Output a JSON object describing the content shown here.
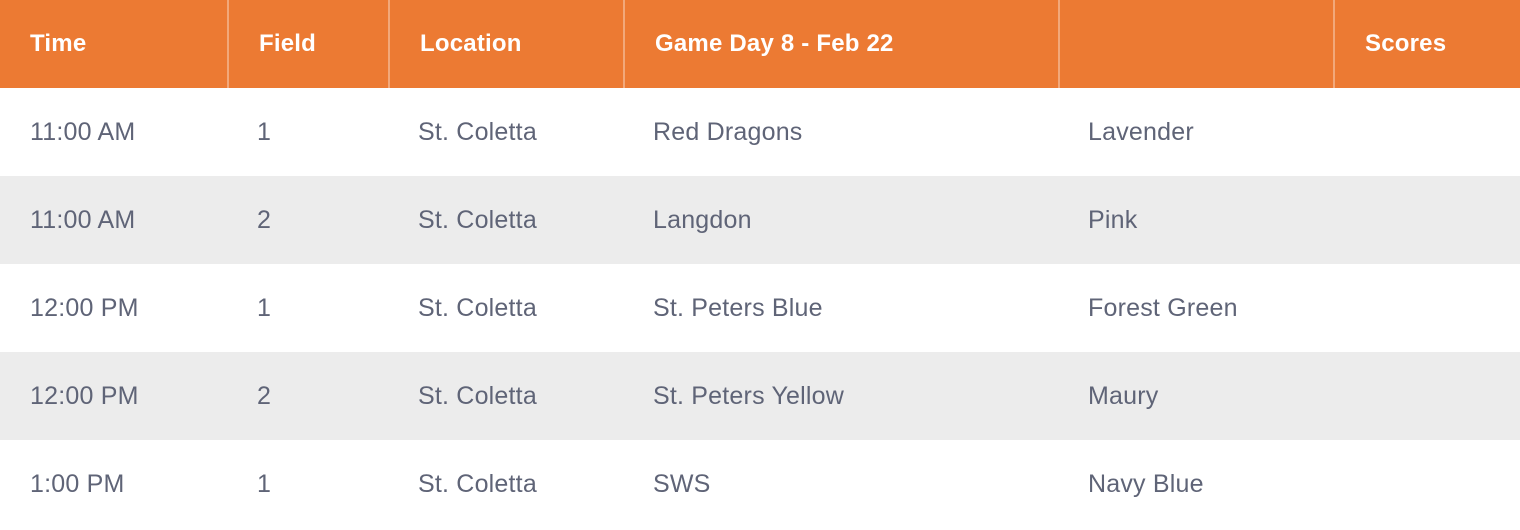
{
  "colors": {
    "header_bg": "#EC7A33",
    "header_text": "#FFFFFF",
    "header_divider": "rgba(255,255,255,0.35)",
    "body_text": "#5F6477",
    "row_bg": "#FFFFFF",
    "row_alt_bg": "#ECECEC"
  },
  "schedule": {
    "columns": [
      {
        "id": "time",
        "label": "Time"
      },
      {
        "id": "field",
        "label": "Field"
      },
      {
        "id": "location",
        "label": "Location"
      },
      {
        "id": "game_day",
        "label": "Game Day 8 - Feb 22"
      },
      {
        "id": "opponent",
        "label": ""
      },
      {
        "id": "scores",
        "label": "Scores"
      }
    ],
    "rows": [
      {
        "time": "11:00 AM",
        "field": "1",
        "location": "St. Coletta",
        "team_home": "Red Dragons",
        "team_away": "Lavender",
        "score": ""
      },
      {
        "time": "11:00 AM",
        "field": "2",
        "location": "St. Coletta",
        "team_home": "Langdon",
        "team_away": "Pink",
        "score": ""
      },
      {
        "time": "12:00 PM",
        "field": "1",
        "location": "St. Coletta",
        "team_home": "St. Peters Blue",
        "team_away": "Forest Green",
        "score": ""
      },
      {
        "time": "12:00 PM",
        "field": "2",
        "location": "St. Coletta",
        "team_home": "St. Peters Yellow",
        "team_away": "Maury",
        "score": ""
      },
      {
        "time": "1:00 PM",
        "field": "1",
        "location": "St. Coletta",
        "team_home": "SWS",
        "team_away": "Navy Blue",
        "score": ""
      }
    ]
  }
}
